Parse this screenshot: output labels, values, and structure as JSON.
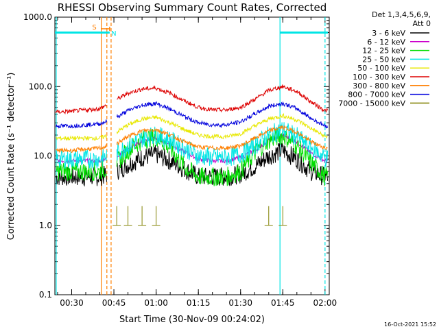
{
  "chart_data": {
    "type": "line",
    "title": "RHESSI Observing Summary Count Rates, Corrected",
    "xlabel": "Start Time (30-Nov-09 00:24:02)",
    "ylabel": "Corrected Count Rate (s⁻¹ detector⁻¹)",
    "ylog": true,
    "ylim": [
      0.1,
      1000
    ],
    "xlim_minutes": [
      24.03,
      121.5
    ],
    "x_ticks": [
      {
        "minute": 30,
        "label": "00:30"
      },
      {
        "minute": 45,
        "label": "00:45"
      },
      {
        "minute": 60,
        "label": "01:00"
      },
      {
        "minute": 75,
        "label": "01:15"
      },
      {
        "minute": 90,
        "label": "01:30"
      },
      {
        "minute": 105,
        "label": "01:45"
      },
      {
        "minute": 120,
        "label": "02:00"
      }
    ],
    "y_ticks": [
      {
        "value": 0.1,
        "label": "0.1"
      },
      {
        "value": 1,
        "label": "1.0"
      },
      {
        "value": 10,
        "label": "10.0"
      },
      {
        "value": 100,
        "label": "100.0"
      },
      {
        "value": 1000,
        "label": "1000.0"
      }
    ],
    "legend_header": [
      "Det 1,3,4,5,6,9,",
      "Att 0"
    ],
    "legend_position": "right",
    "x": [
      26,
      30,
      35,
      40,
      46,
      50,
      55,
      60,
      65,
      70,
      75,
      80,
      85,
      90,
      95,
      100,
      105,
      110,
      115,
      120
    ],
    "series": [
      {
        "name": "3 - 6 keV",
        "color": "#000000",
        "values": [
          5,
          5,
          5,
          5,
          6,
          7.5,
          9.5,
          10.5,
          8.5,
          6.5,
          5,
          5,
          5,
          5.5,
          7,
          10,
          12,
          9,
          6,
          5
        ]
      },
      {
        "name": "6 - 12 keV",
        "color": "#cc00cc",
        "values": [
          8.5,
          8.5,
          8.5,
          8.5,
          10,
          12.5,
          16,
          18,
          15,
          11.5,
          9,
          8.5,
          8.5,
          9.5,
          12,
          17,
          20,
          16,
          11,
          8.5
        ]
      },
      {
        "name": "12 - 25 keV",
        "color": "#00dd00",
        "values": [
          6,
          6,
          6,
          6,
          8,
          12,
          17,
          19,
          13,
          7,
          5,
          5,
          5,
          6,
          11,
          17,
          20,
          14,
          8,
          5
        ]
      },
      {
        "name": "25 - 50 keV",
        "color": "#00e5e5",
        "values": [
          9,
          9,
          9,
          9,
          11,
          14,
          18,
          20,
          17,
          13,
          10,
          9.5,
          9.5,
          10.5,
          14,
          20,
          24,
          19,
          13,
          9.5
        ]
      },
      {
        "name": "50 - 100 keV",
        "color": "#e8e800",
        "values": [
          18,
          18,
          18,
          18,
          22,
          28,
          34,
          36,
          30,
          24,
          20,
          19,
          19,
          21,
          27,
          34,
          38,
          33,
          25,
          19
        ]
      },
      {
        "name": "100 - 300 keV",
        "color": "#dd0000",
        "values": [
          43,
          44,
          46,
          48,
          65,
          80,
          92,
          95,
          80,
          62,
          50,
          46,
          46,
          50,
          65,
          88,
          100,
          85,
          60,
          45
        ]
      },
      {
        "name": "300 - 800 keV",
        "color": "#ff7f00",
        "values": [
          12,
          12,
          12.5,
          13,
          15,
          19,
          23,
          24,
          20,
          16,
          13.5,
          13,
          13,
          14,
          18,
          23,
          26,
          22,
          16,
          13
        ]
      },
      {
        "name": "800 - 7000 keV",
        "color": "#0000dd",
        "values": [
          27,
          27,
          28,
          29,
          36,
          45,
          54,
          57,
          47,
          37,
          30,
          28,
          28,
          31,
          40,
          52,
          57,
          48,
          35,
          27
        ]
      },
      {
        "name": "7000 - 15000 keV",
        "color": "#808000",
        "values": [
          null,
          null,
          null,
          null,
          1,
          1,
          1,
          1,
          null,
          null,
          null,
          null,
          null,
          null,
          null,
          1,
          1,
          null,
          null,
          null
        ]
      }
    ],
    "annotations": [
      {
        "label": "S",
        "color": "#ff7f00",
        "type": "interval",
        "start_minute": 40.5,
        "end_minute": 43.5
      },
      {
        "label": "N",
        "color": "#00e5e5",
        "type": "flag",
        "minute": 43.5
      },
      {
        "type": "saturation_bar",
        "color": "#00e5e5",
        "value": 600,
        "ranges": [
          [
            24.03,
            43.5
          ],
          [
            104,
            121
          ]
        ]
      }
    ],
    "vlines": [
      {
        "minute": 24.5,
        "color": "#00e5e5",
        "style": "solid"
      },
      {
        "minute": 40.5,
        "color": "#ff7f00",
        "style": "solid"
      },
      {
        "minute": 42.5,
        "color": "#ff7f00",
        "style": "dashed"
      },
      {
        "minute": 44,
        "color": "#ff7f00",
        "style": "dashed"
      },
      {
        "minute": 104,
        "color": "#00e5e5",
        "style": "solid"
      },
      {
        "minute": 120,
        "color": "#00e5e5",
        "style": "dashed"
      }
    ],
    "gap_minutes": [
      42.5,
      46
    ],
    "footer_date": "16-Oct-2021 15:52"
  }
}
